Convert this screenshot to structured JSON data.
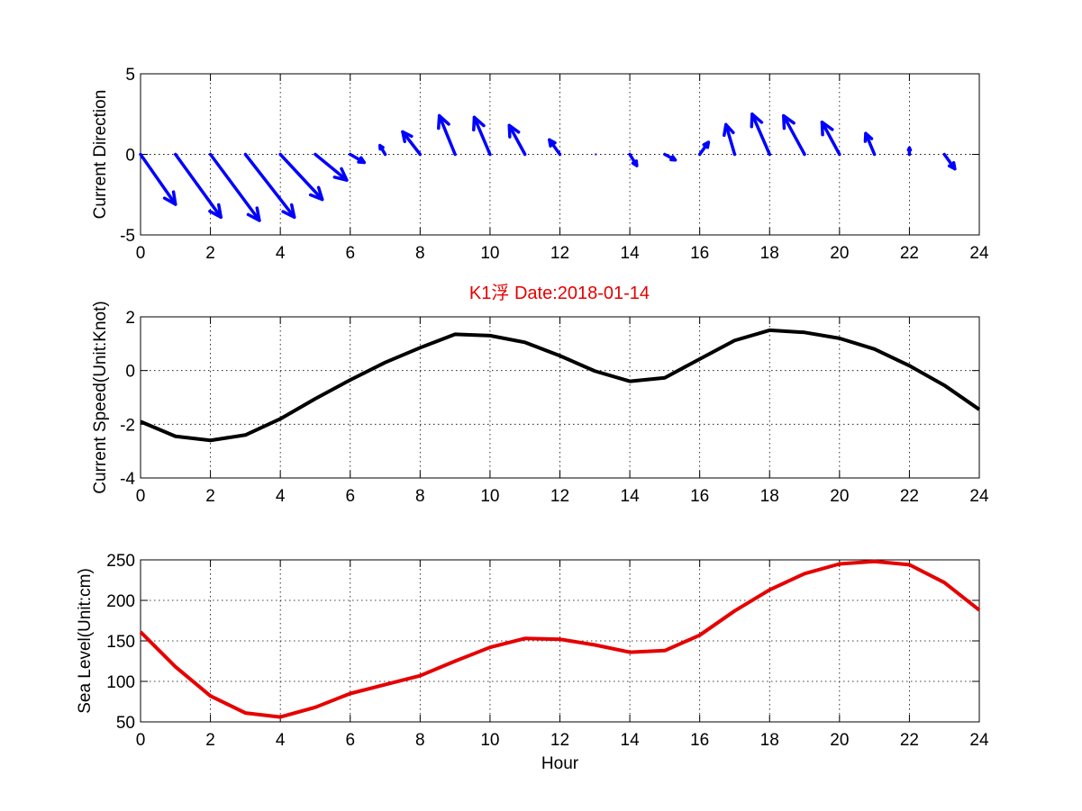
{
  "title": "K1浮   Date:2018-01-14",
  "chart_data": [
    {
      "type": "quiver",
      "ylabel": "Current Direction",
      "xlabel": "",
      "xlim": [
        0,
        24
      ],
      "ylim": [
        -5,
        5
      ],
      "xticks": [
        0,
        2,
        4,
        6,
        8,
        10,
        12,
        14,
        16,
        18,
        20,
        22,
        24
      ],
      "yticks": [
        -5,
        0,
        5
      ],
      "grid": true,
      "color": "#0000ff",
      "vectors": [
        {
          "x": 0,
          "u": 1.0,
          "v": -3.1
        },
        {
          "x": 1,
          "u": 1.3,
          "v": -3.9
        },
        {
          "x": 2,
          "u": 1.4,
          "v": -4.1
        },
        {
          "x": 3,
          "u": 1.4,
          "v": -3.9
        },
        {
          "x": 4,
          "u": 1.2,
          "v": -2.8
        },
        {
          "x": 5,
          "u": 0.9,
          "v": -1.6
        },
        {
          "x": 6,
          "u": 0.4,
          "v": -0.5
        },
        {
          "x": 7,
          "u": -0.15,
          "v": 0.55
        },
        {
          "x": 8,
          "u": -0.5,
          "v": 1.4
        },
        {
          "x": 9,
          "u": -0.45,
          "v": 2.4
        },
        {
          "x": 10,
          "u": -0.45,
          "v": 2.3
        },
        {
          "x": 11,
          "u": -0.45,
          "v": 1.8
        },
        {
          "x": 12,
          "u": -0.3,
          "v": 0.9
        },
        {
          "x": 13,
          "u": 0.0,
          "v": 0.05
        },
        {
          "x": 14,
          "u": 0.2,
          "v": -0.7
        },
        {
          "x": 15,
          "u": 0.3,
          "v": -0.35
        },
        {
          "x": 16,
          "u": 0.25,
          "v": 0.75
        },
        {
          "x": 17,
          "u": -0.25,
          "v": 1.85
        },
        {
          "x": 18,
          "u": -0.5,
          "v": 2.5
        },
        {
          "x": 19,
          "u": -0.6,
          "v": 2.4
        },
        {
          "x": 20,
          "u": -0.5,
          "v": 2.0
        },
        {
          "x": 21,
          "u": -0.25,
          "v": 1.3
        },
        {
          "x": 22,
          "u": 0.0,
          "v": 0.4
        },
        {
          "x": 23,
          "u": 0.3,
          "v": -0.9
        }
      ]
    },
    {
      "type": "line",
      "ylabel": "Current Speed(Unit:Knot)",
      "xlabel": "",
      "xlim": [
        0,
        24
      ],
      "ylim": [
        -4,
        2
      ],
      "xticks": [
        0,
        2,
        4,
        6,
        8,
        10,
        12,
        14,
        16,
        18,
        20,
        22,
        24
      ],
      "yticks": [
        -4,
        -2,
        0,
        2
      ],
      "grid": true,
      "color": "#000000",
      "x": [
        0,
        1,
        2,
        3,
        4,
        5,
        6,
        7,
        8,
        9,
        10,
        11,
        12,
        13,
        14,
        15,
        16,
        17,
        18,
        19,
        20,
        21,
        22,
        23,
        24
      ],
      "y": [
        -1.9,
        -2.45,
        -2.6,
        -2.4,
        -1.8,
        -1.05,
        -0.35,
        0.3,
        0.85,
        1.35,
        1.3,
        1.05,
        0.55,
        -0.02,
        -0.4,
        -0.27,
        0.43,
        1.12,
        1.5,
        1.42,
        1.2,
        0.8,
        0.18,
        -0.55,
        -1.45
      ]
    },
    {
      "type": "line",
      "ylabel": "Sea Level(Unit:cm)",
      "xlabel": "Hour",
      "xlim": [
        0,
        24
      ],
      "ylim": [
        50,
        250
      ],
      "xticks": [
        0,
        2,
        4,
        6,
        8,
        10,
        12,
        14,
        16,
        18,
        20,
        22,
        24
      ],
      "yticks": [
        50,
        100,
        150,
        200,
        250
      ],
      "grid": true,
      "color": "#e60000",
      "x": [
        0,
        1,
        2,
        3,
        4,
        5,
        6,
        7,
        8,
        9,
        10,
        11,
        12,
        13,
        14,
        15,
        16,
        17,
        18,
        19,
        20,
        21,
        22,
        23,
        24
      ],
      "y": [
        161,
        118,
        82,
        61,
        56,
        68,
        85,
        96,
        107,
        125,
        142,
        153,
        152,
        145,
        136,
        138,
        157,
        187,
        213,
        233,
        245,
        248,
        244,
        222,
        188
      ]
    }
  ]
}
